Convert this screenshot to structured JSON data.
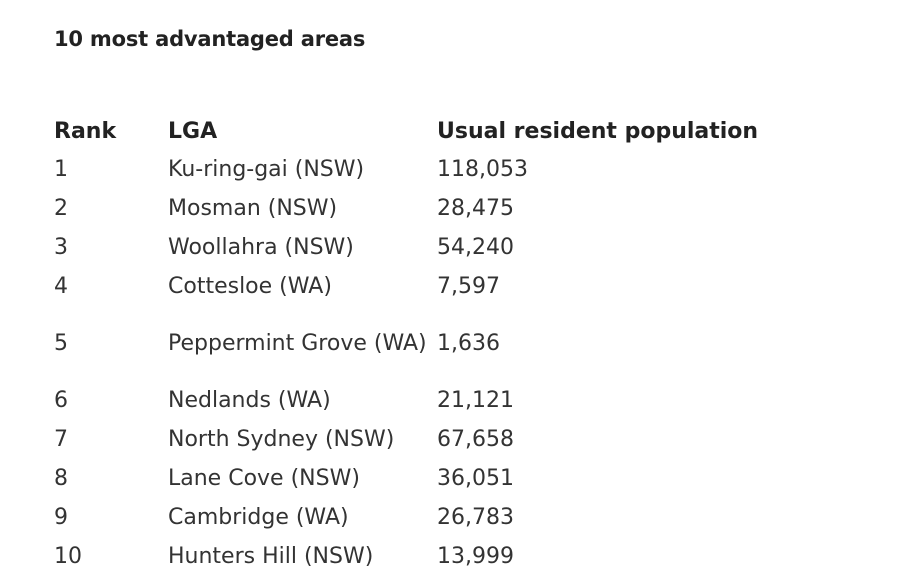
{
  "title": "10 most advantaged areas",
  "table": {
    "columns": [
      "Rank",
      "LGA",
      "Usual resident population"
    ],
    "rows": [
      {
        "rank": "1",
        "lga": "Ku-ring-gai (NSW)",
        "population": "118,053"
      },
      {
        "rank": "2",
        "lga": "Mosman (NSW)",
        "population": "28,475"
      },
      {
        "rank": "3",
        "lga": "Woollahra (NSW)",
        "population": "54,240"
      },
      {
        "rank": "4",
        "lga": "Cottesloe (WA)",
        "population": "7,597"
      },
      {
        "rank": "5",
        "lga": "Peppermint Grove (WA)",
        "population": "1,636"
      },
      {
        "rank": "6",
        "lga": "Nedlands (WA)",
        "population": "21,121"
      },
      {
        "rank": "7",
        "lga": "North Sydney (NSW)",
        "population": "67,658"
      },
      {
        "rank": "8",
        "lga": "Lane Cove (NSW)",
        "population": "36,051"
      },
      {
        "rank": "9",
        "lga": "Cambridge (WA)",
        "population": "26,783"
      },
      {
        "rank": "10",
        "lga": "Hunters Hill (NSW)",
        "population": "13,999"
      }
    ]
  }
}
